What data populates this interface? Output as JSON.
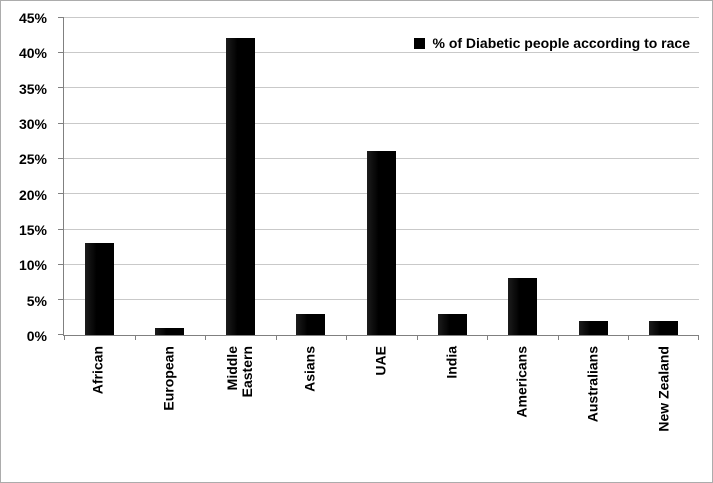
{
  "chart_data": {
    "type": "bar",
    "categories": [
      "African",
      "European",
      "Middle Eastern",
      "Asians",
      "UAE",
      "India",
      "Americans",
      "Australians",
      "New Zealand"
    ],
    "values": [
      13,
      1,
      42,
      3,
      26,
      3,
      8,
      2,
      2
    ],
    "value_unit": "%",
    "series_name": "% of Diabetic people according to race",
    "legend": {
      "label": "% of Diabetic people according to race",
      "position": "top-right"
    },
    "title": "",
    "xlabel": "",
    "ylabel": "",
    "ylim": [
      0,
      45
    ],
    "y_tick_step": 5,
    "y_tick_labels": [
      "0%",
      "5%",
      "10%",
      "15%",
      "20%",
      "25%",
      "30%",
      "35%",
      "40%",
      "45%"
    ],
    "grid": true,
    "colors": {
      "bar": "#000000",
      "gridline": "#c9c9c9",
      "axis": "#808080",
      "text": "#000000",
      "background": "#ffffff",
      "frame_border": "#acacac"
    }
  }
}
